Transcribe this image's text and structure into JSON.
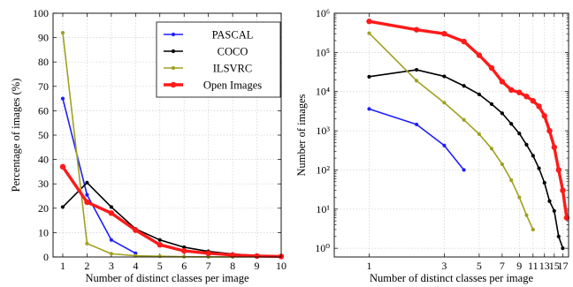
{
  "chart_data": [
    {
      "type": "line",
      "xlabel": "Number of distinct classes per image",
      "ylabel": "Percentage of images (%)",
      "xlim": [
        0.6,
        10
      ],
      "ylim": [
        0,
        100
      ],
      "xticks": [
        1,
        2,
        3,
        4,
        5,
        6,
        7,
        8,
        9,
        10
      ],
      "yticks": [
        0,
        10,
        20,
        30,
        40,
        50,
        60,
        70,
        80,
        90,
        100
      ],
      "grid": true,
      "legend_position": "top-right",
      "series": [
        {
          "name": "PASCAL",
          "color": "#1f1fff",
          "x": [
            1,
            2,
            3,
            4
          ],
          "y": [
            65,
            25.5,
            7,
            1.5
          ]
        },
        {
          "name": "COCO",
          "color": "#000000",
          "x": [
            1,
            2,
            3,
            4,
            5,
            6,
            7,
            8,
            9,
            10
          ],
          "y": [
            20.5,
            30.5,
            20.5,
            11.5,
            7,
            4,
            2.3,
            1.2,
            0.6,
            0.3
          ]
        },
        {
          "name": "ILSVRC",
          "color": "#a0a020",
          "x": [
            1,
            2,
            3,
            4,
            5,
            6,
            7,
            8,
            9,
            10
          ],
          "y": [
            92,
            5.5,
            1.3,
            0.5,
            0.3,
            0.1,
            0.05,
            0.02,
            0.01,
            0.01
          ]
        },
        {
          "name": "Open Images",
          "color": "#ff1a1a",
          "x": [
            1,
            2,
            3,
            4,
            5,
            6,
            7,
            8,
            9,
            10
          ],
          "y": [
            37,
            22.5,
            18,
            11,
            5,
            2.5,
            1.5,
            0.8,
            0.4,
            0.2
          ]
        }
      ]
    },
    {
      "type": "line",
      "xlabel": "Number of distinct classes per image",
      "ylabel": "Number of images",
      "xscale": "log",
      "yscale": "log",
      "xlim": [
        0.6,
        18.5
      ],
      "ylim": [
        0.6,
        1000000
      ],
      "xticks": [
        1,
        3,
        5,
        7,
        9,
        11,
        13,
        15,
        17
      ],
      "yticks": [
        1,
        10,
        100,
        1000,
        10000,
        100000,
        1000000
      ],
      "ytick_labels": [
        "10⁰",
        "10¹",
        "10²",
        "10³",
        "10⁴",
        "10⁵",
        "10⁶"
      ],
      "grid": true,
      "series": [
        {
          "color": "#1f1fff",
          "x": [
            1,
            2,
            3,
            4
          ],
          "y": [
            3600,
            1450,
            420,
            100
          ]
        },
        {
          "color": "#000000",
          "x": [
            1,
            2,
            3,
            4,
            5,
            6,
            7,
            8,
            9,
            10,
            11,
            12,
            13,
            14,
            15,
            16,
            17
          ],
          "y": [
            24000,
            36000,
            24500,
            14000,
            8500,
            4800,
            2800,
            1500,
            850,
            440,
            230,
            110,
            47,
            16,
            9,
            2,
            1
          ]
        },
        {
          "color": "#a0a020",
          "x": [
            1,
            2,
            3,
            4,
            5,
            6,
            7,
            8,
            9,
            10,
            11
          ],
          "y": [
            310000,
            19000,
            5200,
            1900,
            820,
            350,
            140,
            55,
            20,
            7,
            3
          ]
        },
        {
          "color": "#ff1a1a",
          "x": [
            1,
            2,
            3,
            4,
            5,
            6,
            7,
            8,
            9,
            10,
            11,
            12,
            13,
            14,
            15,
            16,
            17,
            18
          ],
          "y": [
            620000,
            380000,
            300000,
            190000,
            85000,
            40000,
            18000,
            11000,
            9500,
            7500,
            5800,
            4200,
            2400,
            1000,
            380,
            100,
            30,
            6
          ]
        }
      ]
    }
  ]
}
